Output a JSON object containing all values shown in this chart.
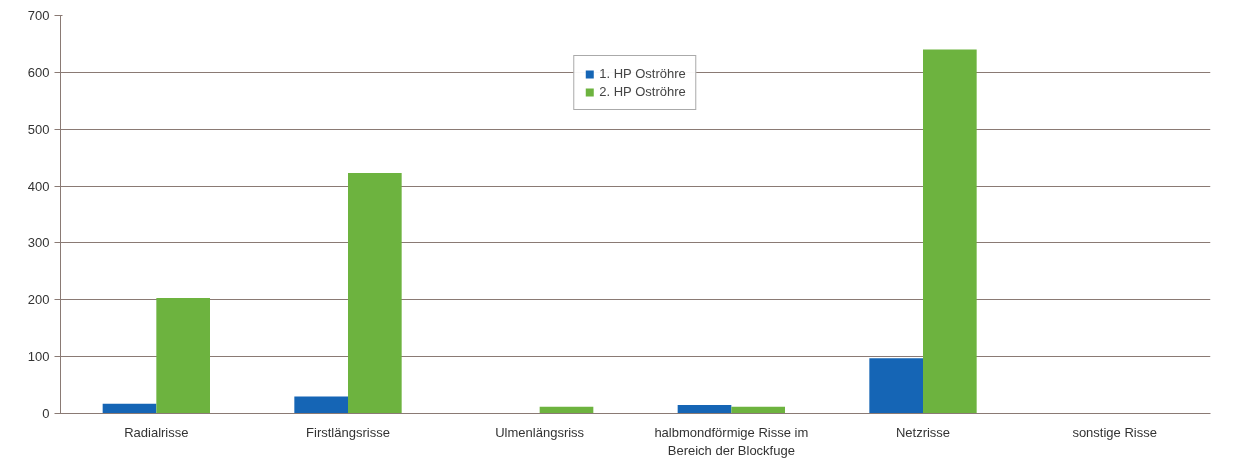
{
  "chart_data": {
    "type": "bar",
    "categories": [
      "Radialrisse",
      "Firstlängsrisse",
      "Ulmenlängsriss",
      "halbmondförmige Risse im\nBereich der Blockfuge",
      "Netzrisse",
      "sonstige Risse"
    ],
    "series": [
      {
        "name": "1. HP Oströhre",
        "color": "#1565b5",
        "values": [
          17,
          30,
          0,
          15,
          97,
          0
        ]
      },
      {
        "name": "2. HP Oströhre",
        "color": "#6db33f",
        "values": [
          203,
          423,
          12,
          12,
          640,
          null
        ]
      }
    ],
    "ylim": [
      0,
      700
    ],
    "yticks": [
      0,
      100,
      200,
      300,
      400,
      500,
      600,
      700
    ],
    "grid": "y",
    "legend": "top"
  }
}
